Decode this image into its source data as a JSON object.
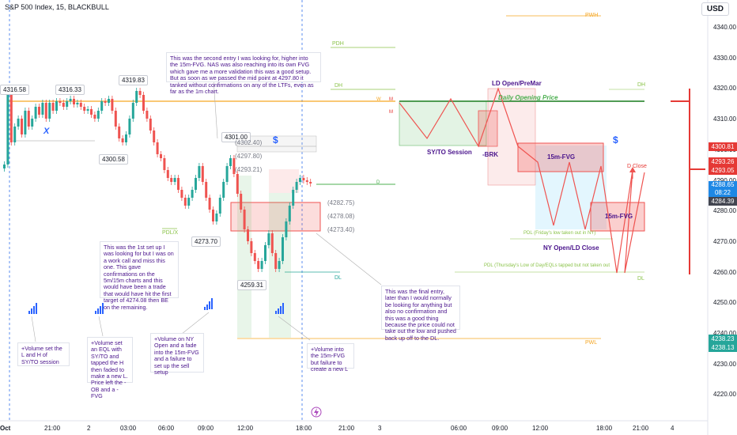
{
  "header": {
    "symbol": "S&P 500 Index, 15, BLACKBULL",
    "currency": "USD"
  },
  "price_axis": [
    "4340.00",
    "4330.00",
    "4320.00",
    "4310.00",
    "4300.00",
    "4290.00",
    "4280.00",
    "4270.00",
    "4260.00",
    "4250.00",
    "4240.00",
    "4230.00",
    "4220.00"
  ],
  "price_tags": {
    "a": "4300.81",
    "b": "4293.26",
    "c": "4293.05",
    "d": "4288.65",
    "d2": "08:22",
    "e": "4284.39",
    "f": "4238.23",
    "g": "4238.13"
  },
  "time_axis": [
    "Oct",
    "21:00",
    "2",
    "03:00",
    "06:00",
    "09:00",
    "12:00",
    "18:00",
    "21:00",
    "3",
    "06:00",
    "09:00",
    "12:00",
    "18:00",
    "21:00",
    "4"
  ],
  "levels": {
    "pwh": "PWH",
    "pdh": "PDH",
    "dh1": "DH",
    "dh2": "DH",
    "pdl": "PDL/X",
    "dl1": "DL",
    "dl2": "DL",
    "pwl": "PWL",
    "w": "W",
    "m1": "M",
    "m2": "M",
    "d": "D"
  },
  "price_labels": {
    "p1": "4316.58",
    "p2": "4316.33",
    "p3": "4319.83",
    "p4": "4300.58",
    "p5": "4301.00",
    "p6": "4273.70",
    "p7": "4259.31",
    "g1": "(4302.40)",
    "g2": "(4297.80)",
    "g3": "(4293.21)",
    "g4": "(4282.75)",
    "g5": "(4278.08)",
    "g6": "(4273.40)"
  },
  "marks": {
    "x": "X",
    "dollar1": "$",
    "dollar2": "$"
  },
  "notes": {
    "n1": "This was the second entry I was looking for, higher into the 15m-FVG.  NAS was also reaching into its own FVG which gave me a more validation this was a good setup.  But as soon as we passed the mid point at 4297.80 it tanked without confirmations on any of the LTFs, even as far as the 1m chart.",
    "n2": "This was the 1st set up I was looking for but I was on a work call and miss this one.  This gave confirmations on the 5m/15m charts and this would have been a trade that would have hit the first target of 4274.08 then BE on the remaining.",
    "n3": "This was the final entry, later than I would normally be looking for anything but also no confirmation and this was a good thing because the price could not take out the low and pushed back up off to the DL.",
    "n4": "+Volume set the L and H of SY/TO session",
    "n5": "+Volume set an EQL with SY/TO and tapped the H then faded to make a new L. Price left the -OB and a -FVG",
    "n6": "+Volume on NY Open and a fade into the 15m-FVG and a failure to set up the sell setup",
    "n7": "+Volume into the 15m-FVG but failure to create a new L"
  },
  "plan": {
    "ld_open": "LD Open/PreMar",
    "daily_open": "Daily Opening Price",
    "syto": "SY/TO Session",
    "brk": "-BRK",
    "fvg1": "15m-FVG",
    "fvg2": "15m-FVG",
    "ny": "NY Open/LD Close",
    "pdl_text": "PDL (Friday's low taken out in NY)",
    "pdl2_text": "PDL (Thursday's Low of Day/EQLs tapped but not taken out",
    "dclose": "D Close",
    "dh": "DH",
    "dl": "DL",
    "dollar": "$"
  }
}
